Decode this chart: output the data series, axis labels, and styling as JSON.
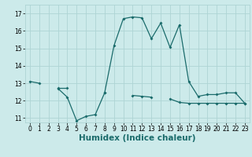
{
  "xlabel": "Humidex (Indice chaleur)",
  "background_color": "#cceaea",
  "grid_color": "#aed4d4",
  "line_color": "#1a6b6b",
  "x_values": [
    0,
    1,
    2,
    3,
    4,
    5,
    6,
    7,
    8,
    9,
    10,
    11,
    12,
    13,
    14,
    15,
    16,
    17,
    18,
    19,
    20,
    21,
    22,
    23
  ],
  "line1_y": [
    13.1,
    13.0,
    null,
    12.7,
    12.2,
    10.85,
    11.1,
    11.2,
    12.45,
    15.15,
    16.7,
    16.8,
    16.75,
    15.55,
    16.45,
    15.05,
    16.35,
    13.1,
    12.25,
    12.35,
    12.35,
    12.45,
    12.45,
    11.85
  ],
  "line2_y": [
    null,
    null,
    null,
    12.75,
    12.75,
    null,
    null,
    null,
    12.45,
    null,
    null,
    12.3,
    12.25,
    12.2,
    null,
    12.1,
    11.9,
    11.85,
    11.85,
    11.85,
    11.85,
    11.85,
    11.85,
    11.85
  ],
  "ylim": [
    10.75,
    17.5
  ],
  "xlim": [
    -0.5,
    23.5
  ],
  "yticks": [
    11,
    12,
    13,
    14,
    15,
    16,
    17
  ],
  "xticks": [
    0,
    1,
    2,
    3,
    4,
    5,
    6,
    7,
    8,
    9,
    10,
    11,
    12,
    13,
    14,
    15,
    16,
    17,
    18,
    19,
    20,
    21,
    22,
    23
  ],
  "tick_fontsize": 5.5,
  "xlabel_fontsize": 7.5
}
